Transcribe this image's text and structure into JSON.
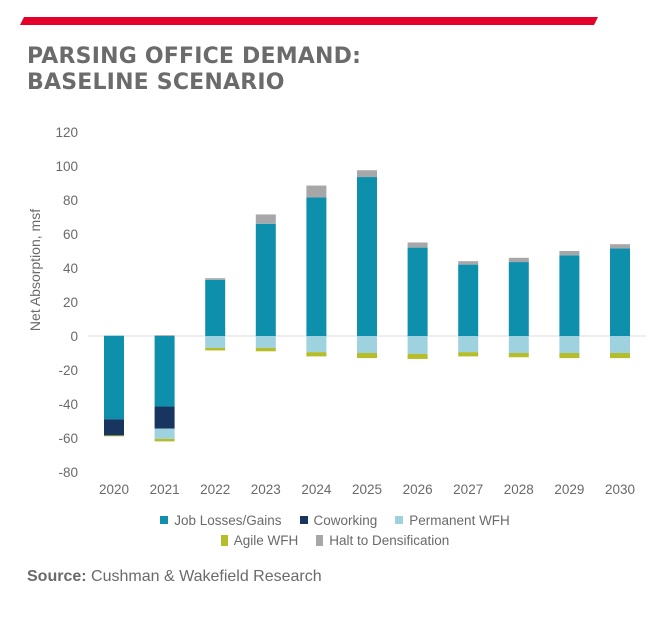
{
  "header": {
    "accent_color": "#e4002b",
    "title_line1": "PARSING OFFICE DEMAND:",
    "title_line2": "BASELINE SCENARIO"
  },
  "chart_data": {
    "type": "bar",
    "stacked": true,
    "title": "PARSING OFFICE DEMAND: BASELINE SCENARIO",
    "xlabel": "",
    "ylabel": "Net Absorption, msf",
    "ylim": [
      -80,
      120
    ],
    "yticks": [
      120,
      100,
      80,
      60,
      40,
      20,
      0,
      -20,
      -40,
      -60,
      -80
    ],
    "grid": false,
    "legend_position": "bottom",
    "categories": [
      "2020",
      "2021",
      "2022",
      "2023",
      "2024",
      "2025",
      "2026",
      "2027",
      "2028",
      "2029",
      "2030"
    ],
    "series": [
      {
        "name": "Job Losses/Gains",
        "color": "#0e90ad",
        "values": [
          -49,
          -41.5,
          33,
          66,
          81.5,
          93.5,
          52,
          42,
          43.5,
          47.5,
          51.5
        ]
      },
      {
        "name": "Coworking",
        "color": "#17355f",
        "values": [
          -9.5,
          -13,
          0,
          0,
          0,
          0,
          0,
          0,
          0,
          0,
          0
        ]
      },
      {
        "name": "Permanent WFH",
        "color": "#9ed2df",
        "values": [
          0.5,
          -6,
          -7,
          -7,
          -9.5,
          -10,
          -10.5,
          -9.5,
          -10,
          -10,
          -10
        ]
      },
      {
        "name": "Agile WFH",
        "color": "#b5bd2b",
        "values": [
          -0.5,
          -1.5,
          -1.5,
          -2,
          -2.5,
          -3,
          -3,
          -2.5,
          -2.5,
          -3,
          -3
        ]
      },
      {
        "name": "Halt to Densification",
        "color": "#a7a7a9",
        "values": [
          0,
          0.5,
          1,
          5.5,
          7,
          4,
          3,
          2,
          2.5,
          2.5,
          2.5
        ]
      }
    ]
  },
  "legend": {
    "row1": [
      {
        "label": "Job Losses/Gains",
        "color": "#0e90ad"
      },
      {
        "label": "Coworking",
        "color": "#17355f"
      },
      {
        "label": "Permanent WFH",
        "color": "#9ed2df"
      }
    ],
    "row2": [
      {
        "label": "Agile WFH",
        "color": "#b5bd2b"
      },
      {
        "label": "Halt to Densification",
        "color": "#a7a7a9"
      }
    ]
  },
  "footer": {
    "source_label": "Source:",
    "source_text": " Cushman & Wakefield Research"
  }
}
